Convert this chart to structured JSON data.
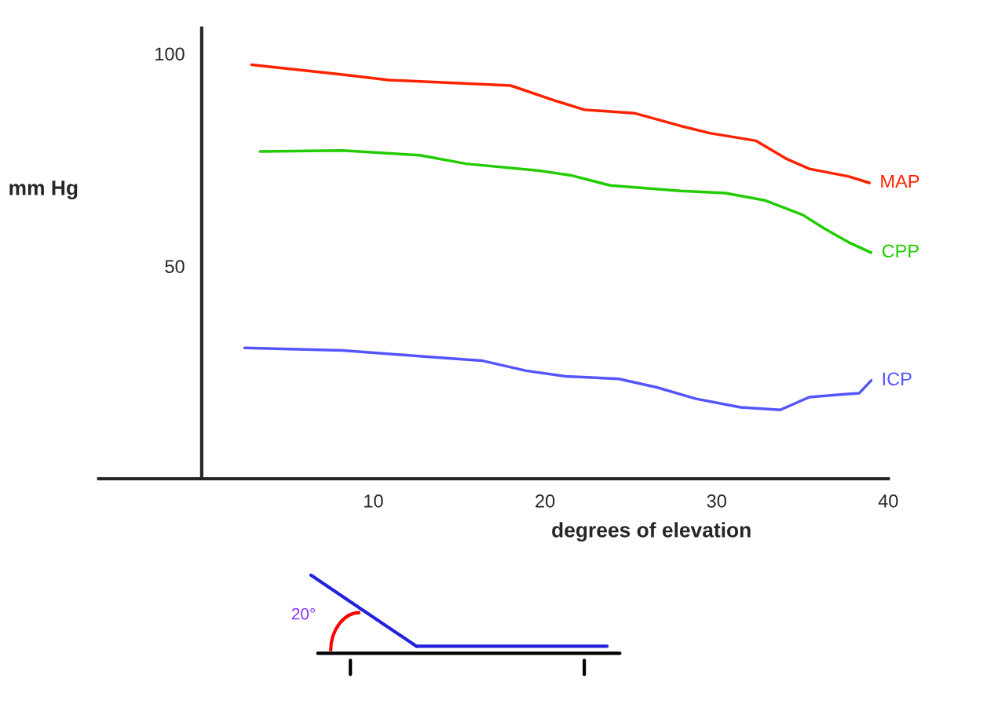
{
  "chart_data": {
    "type": "line",
    "xlabel": "degrees of elevation",
    "ylabel": "mm Hg",
    "xlim": [
      -6,
      40
    ],
    "xticks": [
      10,
      20,
      30,
      40
    ],
    "ylim": [
      0,
      106
    ],
    "yticks": [
      50,
      100
    ],
    "grid": false,
    "legend": false,
    "marker": "none",
    "line_style": "solid",
    "annotations": [
      "20°"
    ],
    "series": [
      {
        "name": "MAP",
        "color": "#ff2200",
        "x": [
          2.9,
          8.2,
          10.9,
          18,
          20.7,
          22.3,
          25.2,
          27.9,
          29.6,
          32.3,
          34.1,
          35.4,
          37.7,
          38.9
        ],
        "values": [
          97.4,
          95.1,
          93.8,
          92.5,
          88.8,
          86.8,
          86,
          83,
          81.3,
          79.5,
          75.2,
          72.9,
          71.1,
          69.6
        ]
      },
      {
        "name": "CPP",
        "color": "#22cc00",
        "x": [
          3.4,
          8.2,
          12.7,
          15.4,
          19.8,
          21.6,
          23.8,
          27.9,
          30.5,
          32.8,
          35,
          36.3,
          37.7,
          39
        ],
        "values": [
          77,
          77.2,
          76.1,
          74.1,
          72.4,
          71.3,
          69,
          67.7,
          67.2,
          65.5,
          62.1,
          58.8,
          55.6,
          53.2
        ]
      },
      {
        "name": "ICP",
        "color": "#5555ff",
        "x": [
          2.5,
          8.2,
          13.1,
          16.3,
          18.9,
          21.2,
          24.3,
          26.5,
          28.8,
          31.4,
          33.7,
          35.4,
          37.2,
          38.3,
          39
        ],
        "values": [
          30.8,
          30.2,
          28.7,
          27.8,
          25.4,
          24.1,
          23.5,
          21.5,
          18.8,
          16.8,
          16.2,
          19.2,
          19.8,
          20.1,
          23.1
        ]
      }
    ]
  }
}
